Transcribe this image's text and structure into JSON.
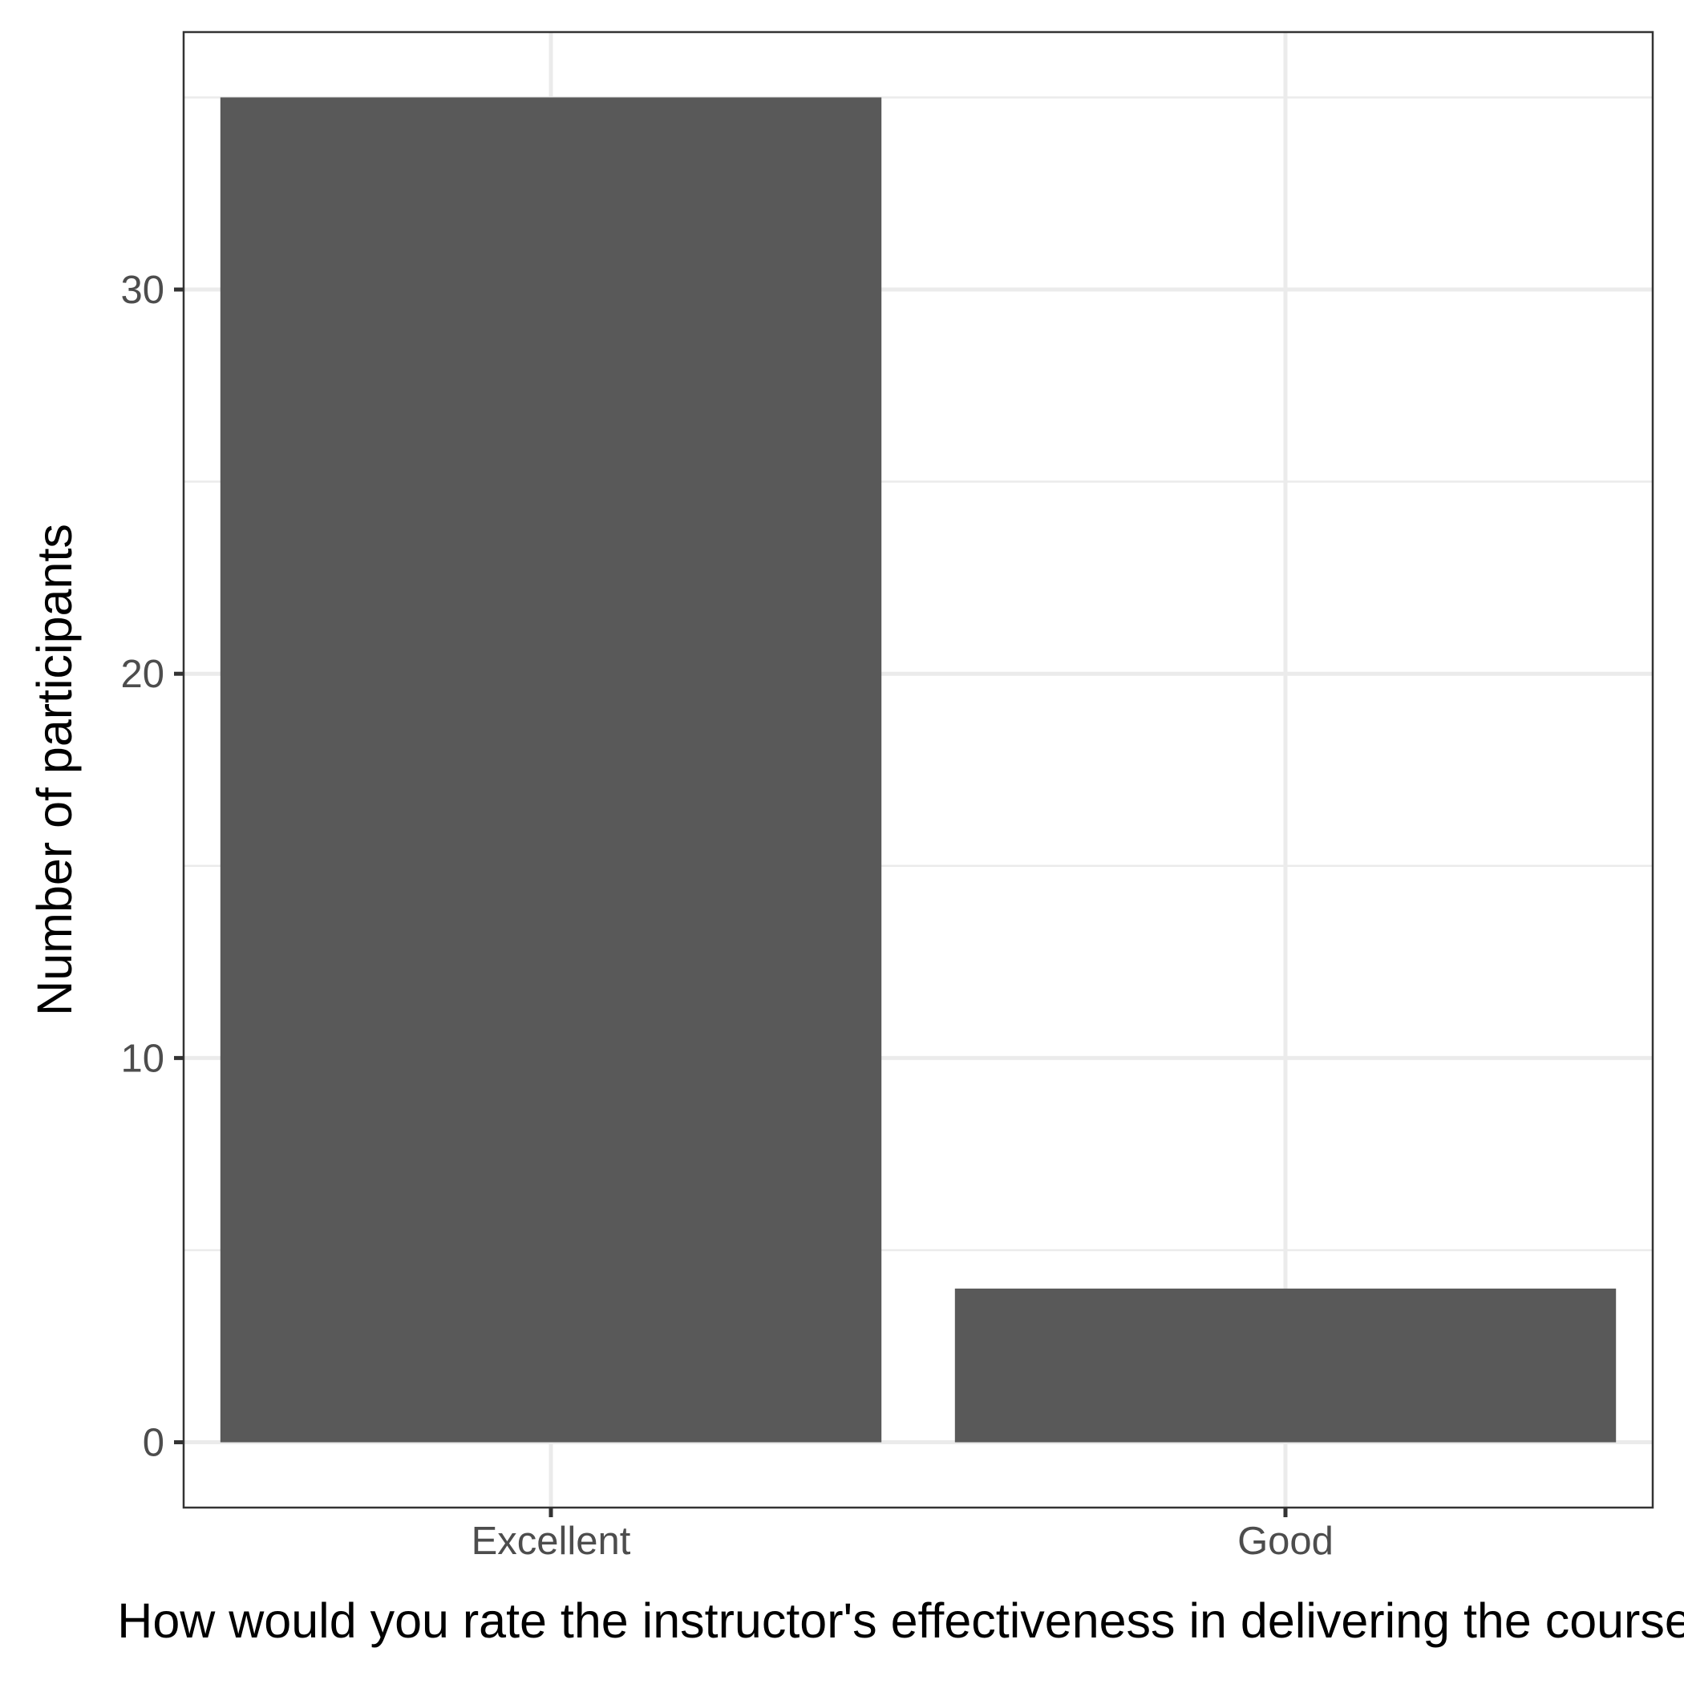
{
  "chart_data": {
    "type": "bar",
    "categories": [
      "Excellent",
      "Good"
    ],
    "values": [
      35,
      4
    ],
    "xlabel": "How would you rate the instructor's effectiveness in delivering the course?",
    "ylabel": "Number of participants",
    "ylim": [
      -1.7,
      36.7
    ],
    "yticks": [
      0,
      10,
      20,
      30
    ],
    "yticks_minor": [
      5,
      15,
      25,
      35
    ],
    "grid": true,
    "legend": "none",
    "colors": {
      "bar": "#595959",
      "grid": "#ebebeb",
      "panel_border": "#333333",
      "tick_text": "#4d4d4d",
      "axis_title": "#000000",
      "background": "#ffffff"
    }
  }
}
